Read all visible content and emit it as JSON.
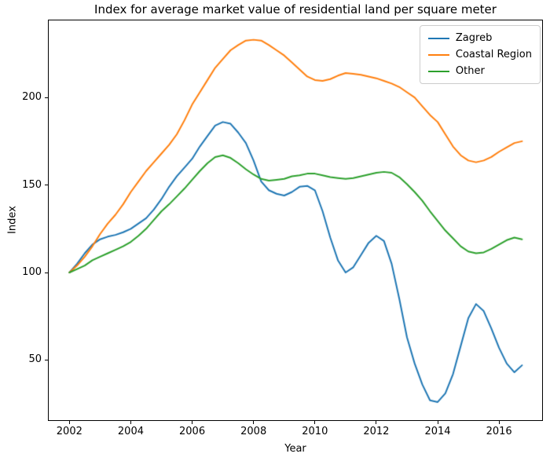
{
  "figure": {
    "title": "Index for average market value of residential land per square meter",
    "xlabel": "Year",
    "ylabel": "Index"
  },
  "chart_data": {
    "type": "line",
    "title": "Index for average market value of residential land per square meter",
    "xlabel": "Year",
    "ylabel": "Index",
    "grid": false,
    "legend_position": "upper right",
    "legend_border_color": "#cccccc",
    "axis_color": "#000000",
    "xlim": [
      2001.3,
      2017.43
    ],
    "ylim": [
      15.2,
      244.5
    ],
    "x_ticks": [
      2002,
      2004,
      2006,
      2008,
      2010,
      2012,
      2014,
      2016
    ],
    "y_ticks": [
      50,
      100,
      150,
      200
    ],
    "x": [
      2002.0,
      2002.25,
      2002.5,
      2002.75,
      2003.0,
      2003.25,
      2003.5,
      2003.75,
      2004.0,
      2004.25,
      2004.5,
      2004.75,
      2005.0,
      2005.25,
      2005.5,
      2005.75,
      2006.0,
      2006.25,
      2006.5,
      2006.75,
      2007.0,
      2007.25,
      2007.5,
      2007.75,
      2008.0,
      2008.25,
      2008.5,
      2008.75,
      2009.0,
      2009.25,
      2009.5,
      2009.75,
      2010.0,
      2010.25,
      2010.5,
      2010.75,
      2011.0,
      2011.25,
      2011.5,
      2011.75,
      2012.0,
      2012.25,
      2012.5,
      2012.75,
      2013.0,
      2013.25,
      2013.5,
      2013.75,
      2014.0,
      2014.25,
      2014.5,
      2014.75,
      2015.0,
      2015.25,
      2015.5,
      2015.75,
      2016.0,
      2016.25,
      2016.5,
      2016.75
    ],
    "series": [
      {
        "name": "Zagreb",
        "color": "#1f77b4",
        "values": [
          100,
          105,
          111,
          116,
          119,
          120.5,
          121.5,
          123,
          125,
          128,
          131,
          136,
          142,
          149,
          155,
          160,
          165,
          172,
          178,
          184,
          186,
          185,
          180,
          174,
          164,
          152,
          147,
          145,
          144,
          146,
          149,
          149.5,
          147,
          135,
          120,
          107,
          100,
          103,
          110,
          117,
          121,
          118,
          105,
          85,
          63,
          48,
          36,
          27,
          26,
          31,
          42,
          58,
          74,
          82,
          78,
          68,
          57,
          48,
          43,
          47
        ]
      },
      {
        "name": "Coastal Region",
        "color": "#ff7f0e",
        "values": [
          100,
          104,
          109,
          115,
          122,
          128,
          133,
          139,
          146,
          152,
          158,
          163,
          168,
          173,
          179,
          187,
          196,
          203,
          210,
          217,
          222,
          227,
          230,
          232.5,
          233,
          232.5,
          230,
          227,
          224,
          220,
          216,
          212,
          210,
          209.5,
          210.5,
          212.5,
          214,
          213.5,
          213,
          212,
          211,
          209.5,
          208,
          206,
          203,
          200,
          195,
          190,
          186,
          179,
          172,
          167,
          164,
          163,
          164,
          166,
          169,
          171.5,
          174,
          175
        ]
      },
      {
        "name": "Other",
        "color": "#2ca02c",
        "values": [
          100,
          102,
          104,
          107,
          109,
          111,
          113,
          115,
          117.5,
          121,
          125,
          130,
          135,
          139,
          143.5,
          148,
          153,
          158,
          162.5,
          166,
          167,
          165.5,
          162.5,
          159,
          156,
          153.5,
          152.5,
          153,
          153.5,
          155,
          155.5,
          156.5,
          156.5,
          155.5,
          154.5,
          154,
          153.5,
          154,
          155,
          156,
          157,
          157.5,
          157,
          154.5,
          150.5,
          146,
          141,
          135,
          129.5,
          124,
          119.5,
          115,
          112,
          111,
          111.5,
          113.5,
          116,
          118.5,
          120,
          119
        ]
      }
    ]
  }
}
